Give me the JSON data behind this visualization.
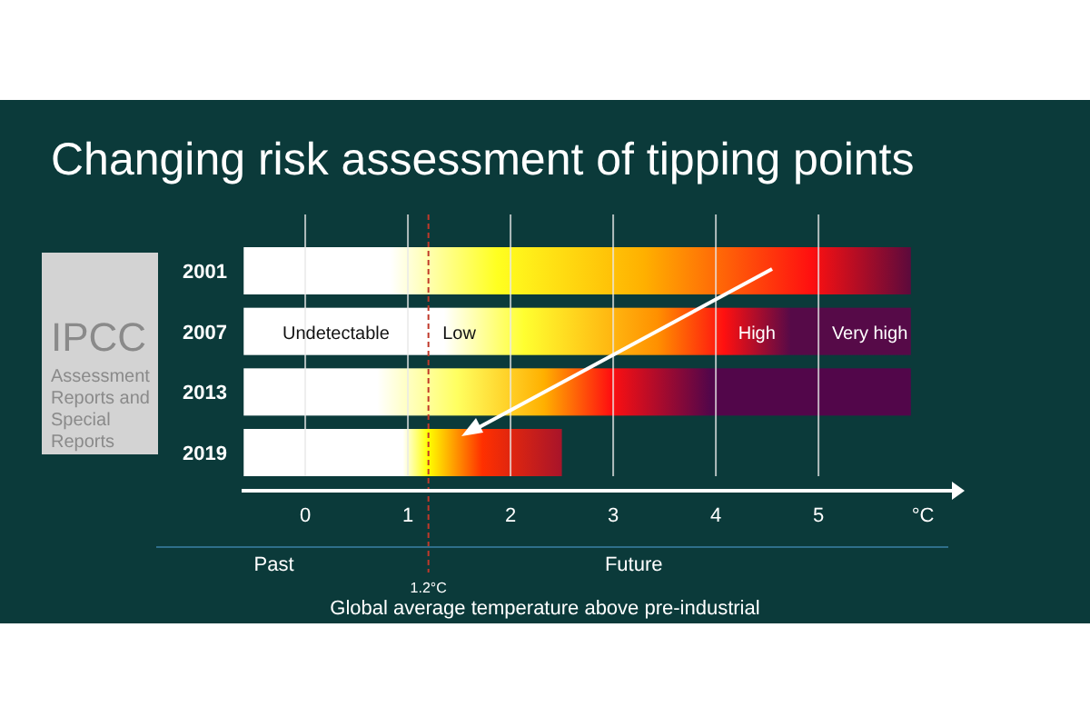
{
  "chart_data": {
    "type": "bar",
    "orientation": "horizontal",
    "title": "Changing risk assessment of tipping points",
    "xlabel": "Global average temperature above pre-industrial",
    "categories": [
      "2001",
      "2007",
      "2013",
      "2019"
    ],
    "base": [
      -0.6,
      -0.6,
      -0.6,
      -0.6
    ],
    "values": [
      6.5,
      6.5,
      6.5,
      3.1
    ],
    "colors": [
      "#5c0a3c",
      "#560a48",
      "#52064a",
      "#a8142a"
    ],
    "xlim": [
      -0.62,
      6.3
    ],
    "xticks": [
      0,
      1,
      2,
      3,
      4,
      5
    ],
    "grid": "x",
    "ref_lines": [
      {
        "axis": "x",
        "value": 1.2,
        "label": "1.2°C",
        "color": "#c0392b",
        "line_style": "dashed"
      }
    ],
    "annotations": [
      {
        "text": "Undetectable",
        "x": 0.3,
        "y": "2007"
      },
      {
        "text": "Low",
        "x": 1.5,
        "y": "2007"
      },
      {
        "text": "High",
        "x": 4.4,
        "y": "2007"
      },
      {
        "text": "Very high",
        "x": 5.5,
        "y": "2007"
      },
      "°C",
      "Past",
      "Future",
      "IPCC",
      "Assessment Reports and Special Reports"
    ]
  }
}
